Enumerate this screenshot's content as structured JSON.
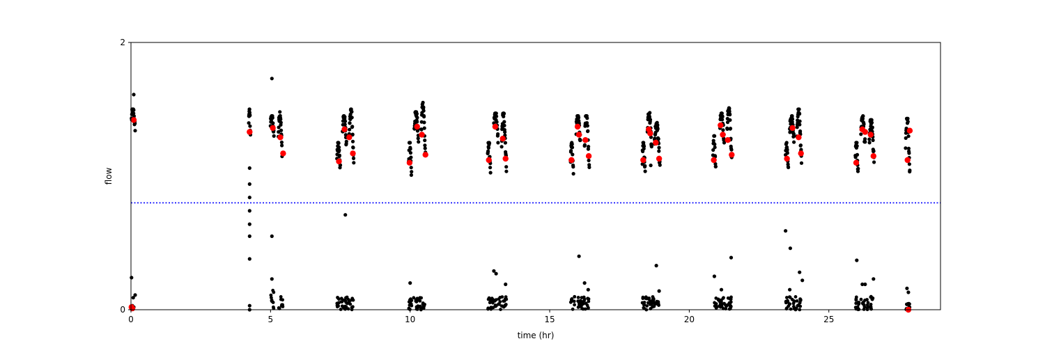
{
  "chart_data": {
    "type": "scatter",
    "xlabel": "time (hr)",
    "ylabel": "flow",
    "xlim": [
      0,
      29
    ],
    "ylim": [
      0,
      2
    ],
    "xticks": [
      0,
      5,
      10,
      15,
      20,
      25
    ],
    "yticks": [
      0,
      2
    ],
    "grid": false,
    "threshold": {
      "y": 0.8,
      "color": "#0000ff",
      "style": "dotted"
    },
    "colors": {
      "raw": "#000000",
      "mean": "#ff0000"
    },
    "bursts": [
      {
        "x0": 0.02,
        "x1": 0.15,
        "lo": 1.34,
        "hi": 1.5,
        "extra": [
          [
            0.1,
            1.61
          ],
          [
            0.02,
            0.24
          ],
          [
            0.08,
            0.09
          ],
          [
            0.15,
            0.11
          ],
          [
            0.05,
            0.03
          ],
          [
            0.1,
            0.02
          ]
        ]
      },
      {
        "x0": 4.22,
        "x1": 4.28,
        "lo": 1.3,
        "hi": 1.5,
        "extra": [
          [
            4.25,
            1.06
          ],
          [
            4.25,
            0.94
          ],
          [
            4.25,
            0.84
          ],
          [
            4.25,
            0.74
          ],
          [
            4.25,
            0.64
          ],
          [
            4.25,
            0.55
          ],
          [
            4.25,
            0.38
          ],
          [
            4.25,
            0.03
          ],
          [
            4.25,
            0.0
          ]
        ]
      },
      {
        "x0": 5.0,
        "x1": 5.12,
        "lo": 1.3,
        "hi": 1.45,
        "extra": [
          [
            5.05,
            1.73
          ],
          [
            5.05,
            0.55
          ],
          [
            5.05,
            0.23
          ]
        ]
      },
      {
        "x0": 5.28,
        "x1": 5.42,
        "lo": 1.13,
        "hi": 1.48,
        "extra": []
      },
      {
        "x0": 7.38,
        "x1": 7.5,
        "lo": 1.02,
        "hi": 1.25,
        "extra": []
      },
      {
        "x0": 7.58,
        "x1": 7.72,
        "lo": 1.22,
        "hi": 1.45,
        "extra": [
          [
            7.68,
            0.71
          ]
        ]
      },
      {
        "x0": 7.82,
        "x1": 7.98,
        "lo": 1.08,
        "hi": 1.5,
        "extra": []
      },
      {
        "x0": 9.95,
        "x1": 10.05,
        "lo": 1.0,
        "hi": 1.25,
        "extra": [
          [
            10.0,
            0.2
          ]
        ]
      },
      {
        "x0": 10.15,
        "x1": 10.3,
        "lo": 1.25,
        "hi": 1.48,
        "extra": []
      },
      {
        "x0": 10.4,
        "x1": 10.55,
        "lo": 1.1,
        "hi": 1.55,
        "extra": []
      },
      {
        "x0": 12.78,
        "x1": 12.88,
        "lo": 1.02,
        "hi": 1.25,
        "extra": [
          [
            13.0,
            0.29
          ],
          [
            13.08,
            0.27
          ]
        ]
      },
      {
        "x0": 13.0,
        "x1": 13.15,
        "lo": 1.25,
        "hi": 1.47,
        "extra": []
      },
      {
        "x0": 13.28,
        "x1": 13.45,
        "lo": 1.03,
        "hi": 1.47,
        "extra": [
          [
            13.42,
            0.19
          ]
        ]
      },
      {
        "x0": 15.75,
        "x1": 15.85,
        "lo": 1.0,
        "hi": 1.25,
        "extra": []
      },
      {
        "x0": 15.95,
        "x1": 16.1,
        "lo": 1.25,
        "hi": 1.45,
        "extra": [
          [
            16.05,
            0.4
          ]
        ]
      },
      {
        "x0": 16.25,
        "x1": 16.42,
        "lo": 1.03,
        "hi": 1.45,
        "extra": [
          [
            16.25,
            0.2
          ],
          [
            16.38,
            0.15
          ]
        ]
      },
      {
        "x0": 18.32,
        "x1": 18.42,
        "lo": 1.0,
        "hi": 1.25,
        "extra": []
      },
      {
        "x0": 18.5,
        "x1": 18.65,
        "lo": 1.22,
        "hi": 1.48,
        "extra": [
          [
            18.62,
            1.08
          ]
        ]
      },
      {
        "x0": 18.75,
        "x1": 18.95,
        "lo": 1.05,
        "hi": 1.4,
        "extra": [
          [
            18.82,
            0.33
          ],
          [
            18.92,
            0.14
          ]
        ]
      },
      {
        "x0": 20.85,
        "x1": 20.95,
        "lo": 1.02,
        "hi": 1.3,
        "extra": [
          [
            20.9,
            0.25
          ]
        ]
      },
      {
        "x0": 21.1,
        "x1": 21.25,
        "lo": 1.25,
        "hi": 1.47,
        "extra": [
          [
            21.15,
            0.15
          ]
        ]
      },
      {
        "x0": 21.35,
        "x1": 21.52,
        "lo": 1.1,
        "hi": 1.51,
        "extra": [
          [
            21.5,
            0.39
          ]
        ]
      },
      {
        "x0": 23.45,
        "x1": 23.55,
        "lo": 1.02,
        "hi": 1.25,
        "extra": [
          [
            23.45,
            0.59
          ],
          [
            23.62,
            0.46
          ]
        ]
      },
      {
        "x0": 23.6,
        "x1": 23.75,
        "lo": 1.25,
        "hi": 1.45,
        "extra": [
          [
            23.6,
            0.15
          ]
        ]
      },
      {
        "x0": 23.85,
        "x1": 24.02,
        "lo": 1.08,
        "hi": 1.5,
        "extra": [
          [
            23.95,
            0.28
          ],
          [
            24.05,
            0.22
          ]
        ]
      },
      {
        "x0": 25.95,
        "x1": 26.05,
        "lo": 1.0,
        "hi": 1.25,
        "extra": [
          [
            26.0,
            0.37
          ]
        ]
      },
      {
        "x0": 26.15,
        "x1": 26.3,
        "lo": 1.2,
        "hi": 1.45,
        "extra": [
          [
            26.2,
            0.19
          ],
          [
            26.3,
            0.19
          ]
        ]
      },
      {
        "x0": 26.45,
        "x1": 26.62,
        "lo": 1.08,
        "hi": 1.42,
        "extra": [
          [
            26.6,
            0.23
          ]
        ]
      },
      {
        "x0": 27.75,
        "x1": 27.9,
        "lo": 1.0,
        "hi": 1.43,
        "extra": [
          [
            27.8,
            0.16
          ],
          [
            27.85,
            0.13
          ],
          [
            27.85,
            0.0
          ]
        ]
      }
    ],
    "low_clusters": [
      {
        "x0": 5.0,
        "x1": 5.12,
        "lo": 0.0,
        "hi": 0.17
      },
      {
        "x0": 5.28,
        "x1": 5.45,
        "lo": 0.0,
        "hi": 0.1
      },
      {
        "x0": 7.38,
        "x1": 7.98,
        "lo": 0.0,
        "hi": 0.1
      },
      {
        "x0": 9.95,
        "x1": 10.55,
        "lo": 0.0,
        "hi": 0.1
      },
      {
        "x0": 12.78,
        "x1": 13.45,
        "lo": 0.0,
        "hi": 0.1
      },
      {
        "x0": 15.75,
        "x1": 16.42,
        "lo": 0.0,
        "hi": 0.1
      },
      {
        "x0": 18.32,
        "x1": 18.95,
        "lo": 0.0,
        "hi": 0.1
      },
      {
        "x0": 20.85,
        "x1": 21.52,
        "lo": 0.0,
        "hi": 0.1
      },
      {
        "x0": 23.45,
        "x1": 24.02,
        "lo": 0.0,
        "hi": 0.1
      },
      {
        "x0": 25.95,
        "x1": 26.62,
        "lo": 0.0,
        "hi": 0.1
      },
      {
        "x0": 27.75,
        "x1": 27.9,
        "lo": 0.0,
        "hi": 0.05
      }
    ],
    "means": [
      [
        0.1,
        1.42
      ],
      [
        4.25,
        1.33
      ],
      [
        5.08,
        1.36
      ],
      [
        5.35,
        1.29
      ],
      [
        5.45,
        1.17
      ],
      [
        7.45,
        1.11
      ],
      [
        7.65,
        1.35
      ],
      [
        7.82,
        1.29
      ],
      [
        7.95,
        1.17
      ],
      [
        9.98,
        1.1
      ],
      [
        10.25,
        1.37
      ],
      [
        10.42,
        1.31
      ],
      [
        10.55,
        1.16
      ],
      [
        12.82,
        1.12
      ],
      [
        13.05,
        1.37
      ],
      [
        13.32,
        1.28
      ],
      [
        13.42,
        1.13
      ],
      [
        15.78,
        1.12
      ],
      [
        16.0,
        1.37
      ],
      [
        16.05,
        1.31
      ],
      [
        16.28,
        1.27
      ],
      [
        16.4,
        1.15
      ],
      [
        18.35,
        1.12
      ],
      [
        18.55,
        1.35
      ],
      [
        18.6,
        1.32
      ],
      [
        18.8,
        1.25
      ],
      [
        18.92,
        1.13
      ],
      [
        20.88,
        1.12
      ],
      [
        21.12,
        1.38
      ],
      [
        21.2,
        1.31
      ],
      [
        21.38,
        1.27
      ],
      [
        21.52,
        1.16
      ],
      [
        23.5,
        1.13
      ],
      [
        23.7,
        1.36
      ],
      [
        23.92,
        1.29
      ],
      [
        24.0,
        1.17
      ],
      [
        25.98,
        1.1
      ],
      [
        26.2,
        1.35
      ],
      [
        26.3,
        1.33
      ],
      [
        26.5,
        1.31
      ],
      [
        26.6,
        1.15
      ],
      [
        27.82,
        1.12
      ],
      [
        27.9,
        1.34
      ],
      [
        27.85,
        0.0
      ],
      [
        0.02,
        0.02
      ],
      [
        0.05,
        0.01
      ]
    ]
  }
}
